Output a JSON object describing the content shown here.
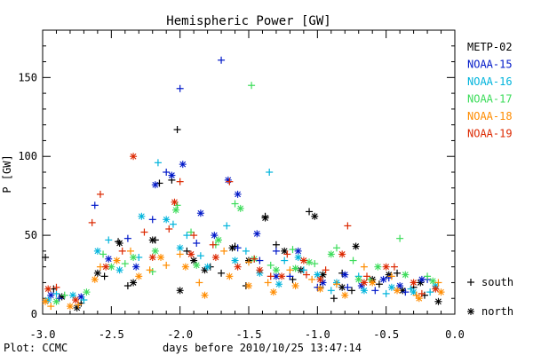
{
  "chart_data": {
    "type": "scatter",
    "title": "Hemispheric Power [GW]",
    "xlabel": "days before 2010/10/25 13:47:14",
    "ylabel": "P [GW]",
    "footer": "Plot: CCMC",
    "xlim": [
      -3.0,
      0.0
    ],
    "ylim": [
      0,
      180
    ],
    "xticks": [
      -3.0,
      -2.5,
      -2.0,
      -1.5,
      -1.0,
      -0.5,
      0.0
    ],
    "xtick_labels": [
      "-3.0",
      "-2.5",
      "-2.0",
      "-1.5",
      "-1.0",
      "-0.5",
      "0.0"
    ],
    "yticks": [
      0,
      50,
      100,
      150
    ],
    "ytick_labels": [
      "0",
      "50",
      "100",
      "150"
    ],
    "legend_position": "right",
    "marker_legend": [
      {
        "symbol": "+",
        "label": "south"
      },
      {
        "symbol": "*",
        "label": "north"
      }
    ],
    "series": [
      {
        "name": "METP-02",
        "color": "#000000",
        "south": [
          [
            -2.98,
            36
          ],
          [
            -2.92,
            16
          ],
          [
            -2.72,
            7
          ],
          [
            -2.55,
            24
          ],
          [
            -2.45,
            46
          ],
          [
            -2.38,
            18
          ],
          [
            -2.18,
            47
          ],
          [
            -2.15,
            83
          ],
          [
            -2.06,
            85
          ],
          [
            -2.02,
            117
          ],
          [
            -1.95,
            40
          ],
          [
            -1.78,
            30
          ],
          [
            -1.7,
            26
          ],
          [
            -1.6,
            43
          ],
          [
            -1.52,
            18
          ],
          [
            -1.38,
            62
          ],
          [
            -1.3,
            44
          ],
          [
            -1.18,
            22
          ],
          [
            -1.06,
            65
          ],
          [
            -0.98,
            17
          ],
          [
            -0.88,
            10
          ],
          [
            -0.82,
            26
          ],
          [
            -0.75,
            15
          ],
          [
            -0.55,
            19
          ],
          [
            -0.42,
            26
          ],
          [
            -0.3,
            17
          ],
          [
            -0.22,
            12
          ]
        ],
        "north": [
          [
            -2.86,
            11
          ],
          [
            -2.75,
            4
          ],
          [
            -2.6,
            26
          ],
          [
            -2.44,
            45
          ],
          [
            -2.34,
            20
          ],
          [
            -2.2,
            47
          ],
          [
            -2.0,
            15
          ],
          [
            -1.9,
            34
          ],
          [
            -1.82,
            28
          ],
          [
            -1.62,
            42
          ],
          [
            -1.5,
            34
          ],
          [
            -1.38,
            61
          ],
          [
            -1.24,
            40
          ],
          [
            -1.12,
            28
          ],
          [
            -1.02,
            62
          ],
          [
            -0.96,
            25
          ],
          [
            -0.82,
            17
          ],
          [
            -0.72,
            43
          ],
          [
            -0.6,
            22
          ],
          [
            -0.48,
            25
          ],
          [
            -0.38,
            15
          ],
          [
            -0.25,
            20
          ],
          [
            -0.12,
            8
          ]
        ]
      },
      {
        "name": "NOAA-15",
        "color": "#0018c8",
        "south": [
          [
            -2.88,
            10
          ],
          [
            -2.62,
            69
          ],
          [
            -2.38,
            48
          ],
          [
            -2.2,
            60
          ],
          [
            -2.1,
            90
          ],
          [
            -2.0,
            143
          ],
          [
            -1.88,
            45
          ],
          [
            -1.7,
            161
          ],
          [
            -1.58,
            42
          ],
          [
            -1.42,
            34
          ],
          [
            -1.3,
            40
          ],
          [
            -1.2,
            24
          ],
          [
            -1.0,
            17
          ],
          [
            -0.78,
            17
          ],
          [
            -0.58,
            15
          ],
          [
            -0.48,
            23
          ],
          [
            -0.36,
            14
          ],
          [
            -0.2,
            22
          ]
        ],
        "north": [
          [
            -2.94,
            12
          ],
          [
            -2.72,
            11
          ],
          [
            -2.52,
            35
          ],
          [
            -2.32,
            30
          ],
          [
            -2.18,
            82
          ],
          [
            -2.06,
            88
          ],
          [
            -1.98,
            95
          ],
          [
            -1.85,
            64
          ],
          [
            -1.75,
            50
          ],
          [
            -1.65,
            85
          ],
          [
            -1.58,
            76
          ],
          [
            -1.44,
            51
          ],
          [
            -1.3,
            24
          ],
          [
            -1.14,
            40
          ],
          [
            -0.96,
            20
          ],
          [
            -0.8,
            25
          ],
          [
            -0.68,
            18
          ],
          [
            -0.52,
            22
          ],
          [
            -0.4,
            18
          ],
          [
            -0.24,
            22
          ]
        ]
      },
      {
        "name": "NOAA-16",
        "color": "#00b4dc",
        "south": [
          [
            -2.9,
            13
          ],
          [
            -2.7,
            9
          ],
          [
            -2.52,
            47
          ],
          [
            -2.3,
            36
          ],
          [
            -2.16,
            96
          ],
          [
            -2.05,
            57
          ],
          [
            -1.95,
            50
          ],
          [
            -1.85,
            37
          ],
          [
            -1.66,
            56
          ],
          [
            -1.52,
            40
          ],
          [
            -1.35,
            90
          ],
          [
            -1.24,
            34
          ],
          [
            -1.1,
            28
          ],
          [
            -0.9,
            15
          ],
          [
            -0.7,
            24
          ],
          [
            -0.5,
            13
          ],
          [
            -0.32,
            16
          ],
          [
            -0.18,
            14
          ]
        ],
        "north": [
          [
            -2.96,
            9
          ],
          [
            -2.78,
            12
          ],
          [
            -2.6,
            40
          ],
          [
            -2.44,
            28
          ],
          [
            -2.28,
            62
          ],
          [
            -2.1,
            60
          ],
          [
            -2.0,
            42
          ],
          [
            -1.8,
            30
          ],
          [
            -1.6,
            34
          ],
          [
            -1.42,
            26
          ],
          [
            -1.28,
            19
          ],
          [
            -1.14,
            36
          ],
          [
            -1.0,
            25
          ],
          [
            -0.86,
            20
          ],
          [
            -0.66,
            15
          ],
          [
            -0.46,
            17
          ],
          [
            -0.3,
            14
          ],
          [
            -0.14,
            18
          ]
        ]
      },
      {
        "name": "NOAA-17",
        "color": "#3cdc5a",
        "south": [
          [
            -2.84,
            12
          ],
          [
            -2.56,
            38
          ],
          [
            -2.4,
            32
          ],
          [
            -2.2,
            27
          ],
          [
            -2.02,
            69
          ],
          [
            -1.92,
            52
          ],
          [
            -1.74,
            44
          ],
          [
            -1.6,
            70
          ],
          [
            -1.48,
            145
          ],
          [
            -1.34,
            31
          ],
          [
            -1.18,
            41
          ],
          [
            -1.02,
            32
          ],
          [
            -0.86,
            42
          ],
          [
            -0.74,
            34
          ],
          [
            -0.62,
            22
          ],
          [
            -0.4,
            48
          ],
          [
            -0.2,
            24
          ]
        ],
        "north": [
          [
            -2.9,
            8
          ],
          [
            -2.68,
            14
          ],
          [
            -2.5,
            30
          ],
          [
            -2.34,
            36
          ],
          [
            -2.18,
            40
          ],
          [
            -2.03,
            66
          ],
          [
            -1.88,
            31
          ],
          [
            -1.72,
            47
          ],
          [
            -1.56,
            67
          ],
          [
            -1.46,
            35
          ],
          [
            -1.3,
            28
          ],
          [
            -1.16,
            29
          ],
          [
            -1.06,
            33
          ],
          [
            -0.9,
            38
          ],
          [
            -0.7,
            22
          ],
          [
            -0.56,
            30
          ],
          [
            -0.36,
            25
          ],
          [
            -0.16,
            21
          ]
        ]
      },
      {
        "name": "NOAA-18",
        "color": "#ff8c00",
        "south": [
          [
            -2.94,
            5
          ],
          [
            -2.74,
            6
          ],
          [
            -2.58,
            30
          ],
          [
            -2.36,
            40
          ],
          [
            -2.22,
            28
          ],
          [
            -2.1,
            31
          ],
          [
            -2.0,
            38
          ],
          [
            -1.86,
            20
          ],
          [
            -1.68,
            40
          ],
          [
            -1.5,
            33
          ],
          [
            -1.36,
            20
          ],
          [
            -1.2,
            28
          ],
          [
            -1.04,
            22
          ],
          [
            -0.86,
            19
          ],
          [
            -0.66,
            30
          ],
          [
            -0.46,
            24
          ],
          [
            -0.28,
            12
          ],
          [
            -0.12,
            20
          ]
        ],
        "north": [
          [
            -2.98,
            8
          ],
          [
            -2.8,
            5
          ],
          [
            -2.62,
            22
          ],
          [
            -2.46,
            34
          ],
          [
            -2.3,
            24
          ],
          [
            -2.14,
            36
          ],
          [
            -1.96,
            30
          ],
          [
            -1.82,
            12
          ],
          [
            -1.64,
            24
          ],
          [
            -1.5,
            18
          ],
          [
            -1.32,
            14
          ],
          [
            -1.16,
            18
          ],
          [
            -0.98,
            16
          ],
          [
            -0.8,
            12
          ],
          [
            -0.6,
            20
          ],
          [
            -0.42,
            15
          ],
          [
            -0.26,
            10
          ],
          [
            -0.1,
            14
          ]
        ]
      },
      {
        "name": "NOAA-19",
        "color": "#dc2800",
        "south": [
          [
            -2.9,
            17
          ],
          [
            -2.64,
            58
          ],
          [
            -2.58,
            76
          ],
          [
            -2.42,
            40
          ],
          [
            -2.26,
            52
          ],
          [
            -2.08,
            54
          ],
          [
            -2.0,
            84
          ],
          [
            -1.9,
            50
          ],
          [
            -1.76,
            44
          ],
          [
            -1.64,
            84
          ],
          [
            -1.46,
            35
          ],
          [
            -1.34,
            24
          ],
          [
            -1.22,
            38
          ],
          [
            -1.08,
            25
          ],
          [
            -0.94,
            28
          ],
          [
            -0.78,
            56
          ],
          [
            -0.64,
            24
          ],
          [
            -0.44,
            30
          ],
          [
            -0.24,
            13
          ]
        ],
        "north": [
          [
            -2.96,
            16
          ],
          [
            -2.76,
            9
          ],
          [
            -2.54,
            30
          ],
          [
            -2.34,
            100
          ],
          [
            -2.2,
            36
          ],
          [
            -2.04,
            71
          ],
          [
            -1.92,
            38
          ],
          [
            -1.74,
            36
          ],
          [
            -1.58,
            30
          ],
          [
            -1.42,
            28
          ],
          [
            -1.26,
            24
          ],
          [
            -1.1,
            34
          ],
          [
            -0.98,
            22
          ],
          [
            -0.82,
            38
          ],
          [
            -0.66,
            20
          ],
          [
            -0.5,
            30
          ],
          [
            -0.3,
            20
          ],
          [
            -0.14,
            16
          ]
        ]
      }
    ]
  }
}
